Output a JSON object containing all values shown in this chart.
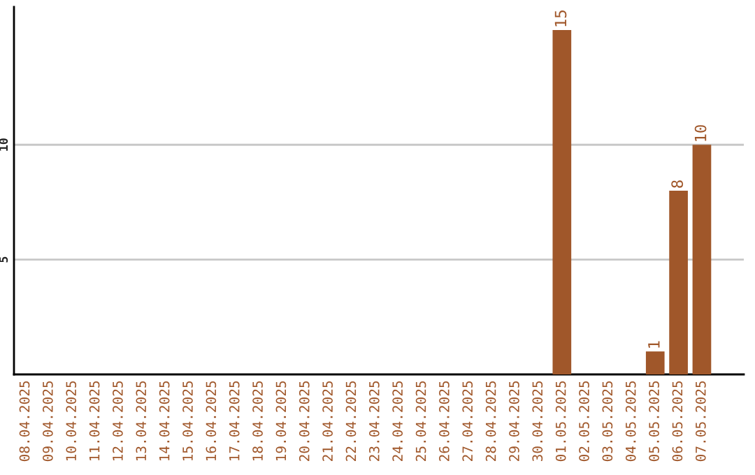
{
  "chart_data": {
    "type": "bar",
    "categories": [
      "08.04.2025",
      "09.04.2025",
      "10.04.2025",
      "11.04.2025",
      "12.04.2025",
      "13.04.2025",
      "14.04.2025",
      "15.04.2025",
      "16.04.2025",
      "17.04.2025",
      "18.04.2025",
      "19.04.2025",
      "20.04.2025",
      "21.04.2025",
      "22.04.2025",
      "23.04.2025",
      "24.04.2025",
      "25.04.2025",
      "26.04.2025",
      "27.04.2025",
      "28.04.2025",
      "29.04.2025",
      "30.04.2025",
      "01.05.2025",
      "02.05.2025",
      "03.05.2025",
      "04.05.2025",
      "05.05.2025",
      "06.05.2025",
      "07.05.2025"
    ],
    "values": [
      0,
      0,
      0,
      0,
      0,
      0,
      0,
      0,
      0,
      0,
      0,
      0,
      0,
      0,
      0,
      0,
      0,
      0,
      0,
      0,
      0,
      0,
      0,
      15,
      0,
      0,
      0,
      1,
      8,
      10
    ],
    "value_labels": [
      null,
      null,
      null,
      null,
      null,
      null,
      null,
      null,
      null,
      null,
      null,
      null,
      null,
      null,
      null,
      null,
      null,
      null,
      null,
      null,
      null,
      null,
      null,
      "15",
      null,
      null,
      null,
      "1",
      "8",
      "10"
    ],
    "color": "#a0572a",
    "ylim": [
      0,
      16
    ],
    "yticks": [
      5,
      10
    ],
    "grid": "y"
  }
}
